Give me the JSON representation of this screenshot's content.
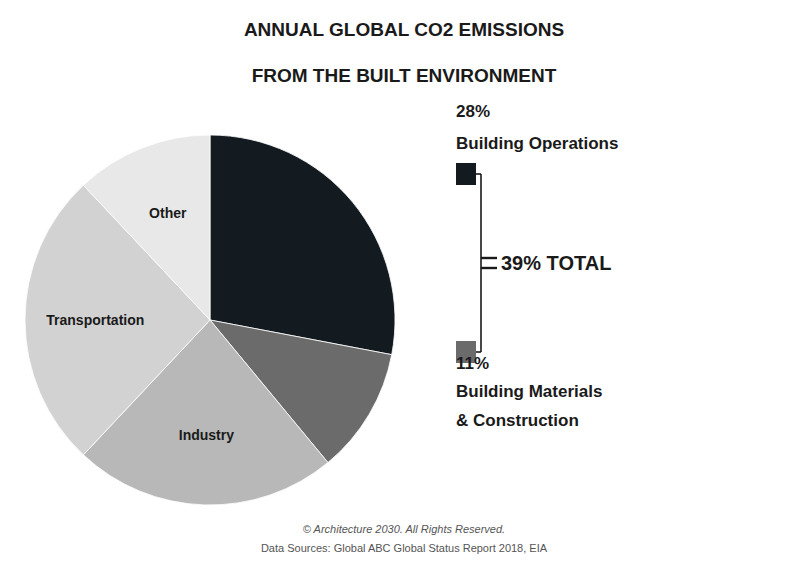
{
  "chart_data": {
    "type": "pie",
    "title": "ANNUAL GLOBAL CO2 EMISSIONS",
    "subtitle": "FROM THE BUILT ENVIRONMENT",
    "categories": [
      null,
      null,
      "Industry",
      "Transportation",
      "Other"
    ],
    "values": [
      28,
      11,
      23,
      26,
      12
    ],
    "colors": [
      "#131b21",
      "#6b6b6b",
      "#b8b8b8",
      "#d2d2d2",
      "#e8e8e8"
    ],
    "annotations": [
      [
        "28%",
        "Building Operations"
      ],
      [
        "39% TOTAL"
      ],
      [
        "11%",
        "Building Materials",
        "& Construction"
      ]
    ],
    "footer": [
      "© Architecture 2030. All Rights Reserved.",
      "Data Sources: Global ABC Global Status Report 2018, EIA"
    ]
  }
}
